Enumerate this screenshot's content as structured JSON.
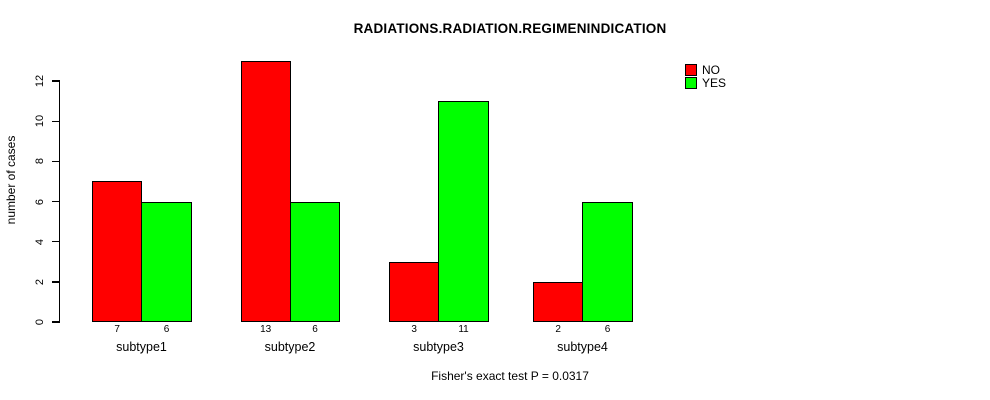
{
  "chart_data": {
    "type": "bar",
    "title": "RADIATIONS.RADIATION.REGIMENINDICATION",
    "xlabel": "",
    "ylabel": "number of cases",
    "categories": [
      "subtype1",
      "subtype2",
      "subtype3",
      "subtype4"
    ],
    "series": [
      {
        "name": "NO",
        "color": "#ff0000",
        "values": [
          7,
          13,
          3,
          2
        ]
      },
      {
        "name": "YES",
        "color": "#00ff00",
        "values": [
          6,
          6,
          11,
          6
        ]
      }
    ],
    "bar_value_labels": [
      [
        "7",
        "6"
      ],
      [
        "13",
        "6"
      ],
      [
        "3",
        "11"
      ],
      [
        "2",
        "6"
      ]
    ],
    "yticks": [
      "0",
      "2",
      "4",
      "6",
      "8",
      "10",
      "12"
    ],
    "ylim": [
      0,
      13
    ],
    "grid": false,
    "legend_position": "top-right",
    "bar_border_color": "#000000",
    "annotation": "Fisher's exact test P = 0.0317"
  }
}
